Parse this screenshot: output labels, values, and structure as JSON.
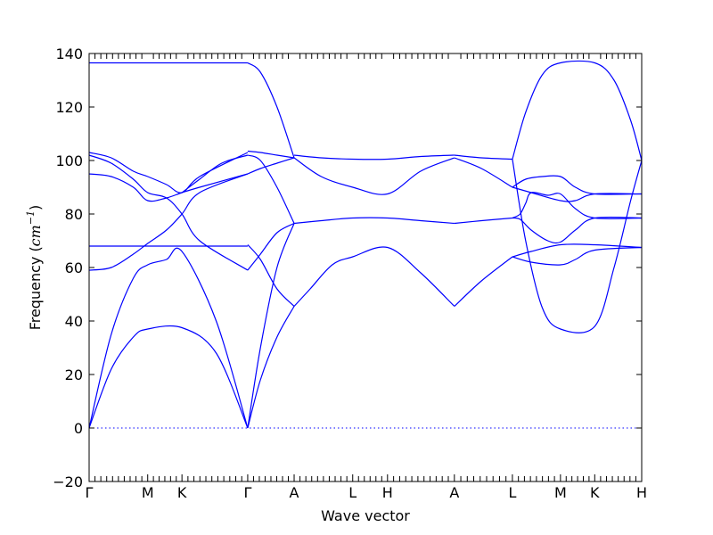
{
  "chart_data": {
    "type": "line",
    "title": "",
    "xlabel": "Wave vector",
    "ylabel_prefix": "Frequency (",
    "ylabel_unit": "cm",
    "ylabel_exp": "−1",
    "ylabel_suffix": ")",
    "ylim": [
      -20,
      140
    ],
    "yticks": [
      -20,
      0,
      20,
      40,
      60,
      80,
      100,
      120,
      140
    ],
    "xlim": [
      0,
      1
    ],
    "x_ticks": [
      {
        "label": "Γ",
        "x": 0.0
      },
      {
        "label": "M",
        "x": 0.106
      },
      {
        "label": "K",
        "x": 0.168
      },
      {
        "label": "Γ",
        "x": 0.287
      },
      {
        "label": "A",
        "x": 0.371
      },
      {
        "label": "L",
        "x": 0.477
      },
      {
        "label": "H",
        "x": 0.54
      },
      {
        "label": "A",
        "x": 0.661
      },
      {
        "label": "L",
        "x": 0.766
      },
      {
        "label": "M",
        "x": 0.853
      },
      {
        "label": "K",
        "x": 0.915
      },
      {
        "label": "H",
        "x": 1.0
      }
    ],
    "zero_line": true,
    "line_color": "#0000ff",
    "series": [
      {
        "x": [
          0,
          0.04,
          0.08,
          0.106,
          0.168,
          0.23,
          0.287
        ],
        "y": [
          0,
          22,
          34,
          37,
          37.5,
          28,
          0
        ]
      },
      {
        "x": [
          0,
          0.04,
          0.08,
          0.106,
          0.14,
          0.168,
          0.23,
          0.287
        ],
        "y": [
          0,
          35,
          56,
          61,
          63,
          66,
          40,
          0
        ]
      },
      {
        "x": [
          0,
          0.04,
          0.08,
          0.106,
          0.168,
          0.2,
          0.287
        ],
        "y": [
          68,
          68,
          68,
          68,
          68,
          68,
          68
        ]
      },
      {
        "x": [
          0,
          0.04,
          0.08,
          0.106,
          0.14,
          0.168,
          0.2,
          0.287
        ],
        "y": [
          59,
          60,
          65,
          69,
          74,
          80,
          88,
          95
        ]
      },
      {
        "x": [
          0,
          0.04,
          0.08,
          0.106,
          0.14,
          0.168,
          0.2,
          0.287
        ],
        "y": [
          95,
          94,
          90,
          85,
          86,
          88,
          90,
          95
        ]
      },
      {
        "x": [
          0,
          0.04,
          0.08,
          0.106,
          0.14,
          0.168,
          0.2,
          0.287
        ],
        "y": [
          102,
          99,
          93,
          88,
          86,
          80,
          70,
          59
        ]
      },
      {
        "x": [
          0,
          0.04,
          0.08,
          0.106,
          0.14,
          0.168,
          0.2,
          0.287
        ],
        "y": [
          103,
          101,
          96,
          94,
          91,
          88,
          94,
          103
        ]
      },
      {
        "x": [
          0,
          0.106,
          0.168,
          0.25,
          0.287
        ],
        "y": [
          136.5,
          136.5,
          136.5,
          136.5,
          136.5
        ]
      },
      {
        "x": [
          0.168,
          0.2,
          0.24,
          0.287
        ],
        "y": [
          88,
          93,
          99,
          102
        ]
      },
      {
        "x": [
          0.287,
          0.31,
          0.34,
          0.371
        ],
        "y": [
          0,
          18,
          34,
          45.5
        ]
      },
      {
        "x": [
          0.287,
          0.31,
          0.34,
          0.371
        ],
        "y": [
          0,
          30,
          60,
          76.5
        ]
      },
      {
        "x": [
          0.287,
          0.31,
          0.34,
          0.371
        ],
        "y": [
          68.5,
          63,
          52,
          45.5
        ]
      },
      {
        "x": [
          0.287,
          0.31,
          0.34,
          0.371
        ],
        "y": [
          59,
          65,
          73,
          76.5
        ]
      },
      {
        "x": [
          0.287,
          0.31,
          0.34,
          0.371
        ],
        "y": [
          95,
          97,
          99,
          101
        ]
      },
      {
        "x": [
          0.287,
          0.31,
          0.34,
          0.371
        ],
        "y": [
          102,
          100,
          90,
          76.5
        ]
      },
      {
        "x": [
          0.287,
          0.31,
          0.34,
          0.371
        ],
        "y": [
          103.5,
          103,
          102,
          101
        ]
      },
      {
        "x": [
          0.287,
          0.31,
          0.34,
          0.371
        ],
        "y": [
          136.5,
          133,
          120,
          101
        ]
      },
      {
        "x": [
          0.371,
          0.4,
          0.44,
          0.477,
          0.54,
          0.6,
          0.661
        ],
        "y": [
          45.5,
          52,
          61,
          64,
          67.5,
          58,
          45.5
        ]
      },
      {
        "x": [
          0.371,
          0.42,
          0.477,
          0.54,
          0.6,
          0.661
        ],
        "y": [
          76.5,
          77.5,
          78.5,
          78.5,
          77.5,
          76.5
        ]
      },
      {
        "x": [
          0.371,
          0.42,
          0.477,
          0.54,
          0.6,
          0.661
        ],
        "y": [
          101,
          94,
          90,
          87.5,
          96,
          101
        ]
      },
      {
        "x": [
          0.371,
          0.42,
          0.477,
          0.54,
          0.6,
          0.661
        ],
        "y": [
          102,
          101,
          100.5,
          100.5,
          101.5,
          102
        ]
      },
      {
        "x": [
          0.661,
          0.71,
          0.766
        ],
        "y": [
          45.5,
          55,
          64
        ]
      },
      {
        "x": [
          0.661,
          0.71,
          0.766
        ],
        "y": [
          76.5,
          77.5,
          78.5
        ]
      },
      {
        "x": [
          0.661,
          0.71,
          0.766
        ],
        "y": [
          101,
          97,
          90
        ]
      },
      {
        "x": [
          0.661,
          0.71,
          0.766
        ],
        "y": [
          102,
          101,
          100.5
        ]
      },
      {
        "x": [
          0.766,
          0.8,
          0.853,
          0.915,
          1.0
        ],
        "y": [
          64,
          66,
          68.5,
          68.5,
          67.5
        ]
      },
      {
        "x": [
          0.766,
          0.8,
          0.853,
          0.88,
          0.915,
          1.0
        ],
        "y": [
          64,
          62,
          61,
          63,
          66.5,
          67.5
        ]
      },
      {
        "x": [
          0.766,
          0.8,
          0.853,
          0.88,
          0.915,
          1.0
        ],
        "y": [
          90,
          88,
          85,
          85,
          87.5,
          87.5
        ]
      },
      {
        "x": [
          0.766,
          0.79,
          0.82,
          0.853,
          0.88,
          0.915,
          1.0
        ],
        "y": [
          90,
          93,
          94,
          94,
          90,
          87.5,
          87.5
        ]
      },
      {
        "x": [
          0.766,
          0.78,
          0.79,
          0.8,
          0.83,
          0.853,
          0.88,
          0.915,
          1.0
        ],
        "y": [
          78.5,
          80,
          84,
          88,
          87,
          87.5,
          82,
          78.5,
          78.5
        ]
      },
      {
        "x": [
          0.766,
          0.78,
          0.8,
          0.83,
          0.853,
          0.88,
          0.915,
          1.0
        ],
        "y": [
          78.5,
          78,
          74,
          70,
          69.5,
          74,
          78.5,
          78.5
        ]
      },
      {
        "x": [
          0.766,
          0.79,
          0.82,
          0.853,
          0.915,
          0.95,
          0.98,
          1.0
        ],
        "y": [
          100.5,
          70,
          45,
          37,
          38,
          60,
          85,
          100
        ]
      },
      {
        "x": [
          0.766,
          0.79,
          0.82,
          0.853,
          0.915,
          0.95,
          0.98,
          1.0
        ],
        "y": [
          100.5,
          118,
          132,
          136.5,
          136.5,
          130,
          115,
          100
        ]
      }
    ]
  }
}
